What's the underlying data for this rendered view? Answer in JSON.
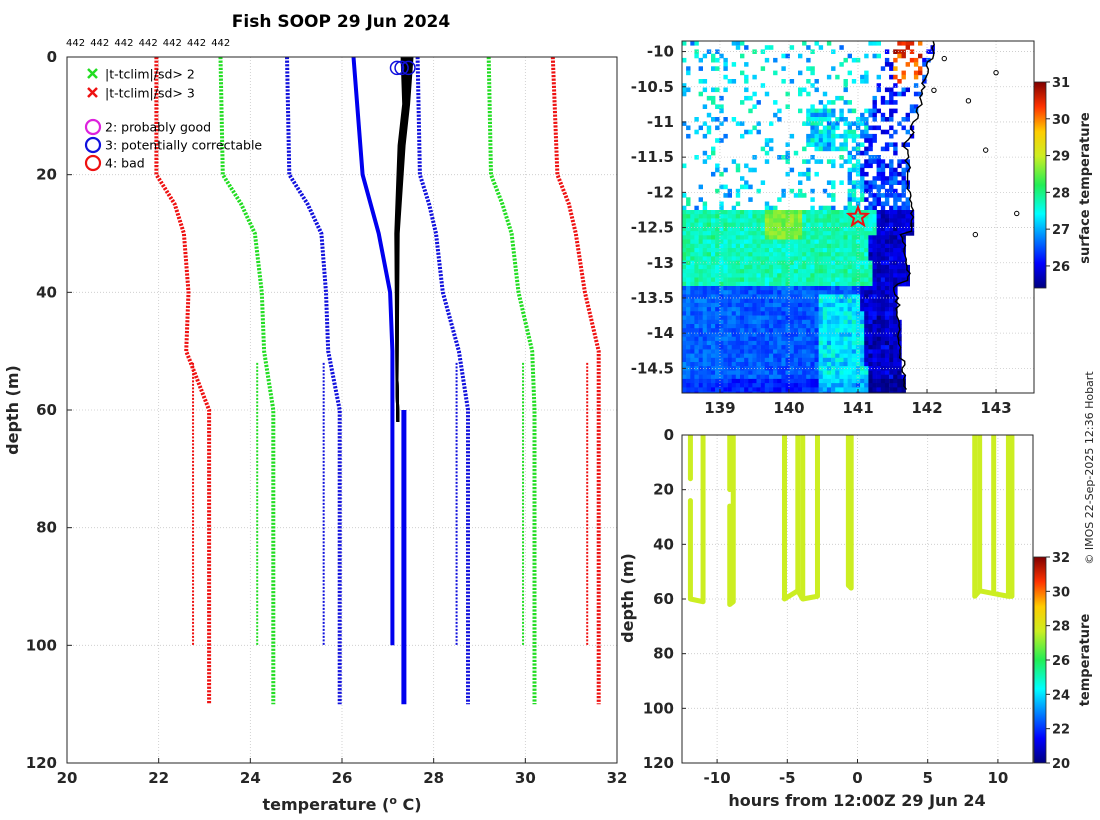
{
  "figure_title": "Fish SOOP 29 Jun 2024",
  "copyright": "© IMOS 22-Sep-2025 12:36 Hobart",
  "chart_data": [
    {
      "type": "line",
      "name": "temperature-profile",
      "xlabel": "temperature (",
      "xlabel_sup": "o",
      "xlabel_end": " C)",
      "ylabel": "depth (m)",
      "xlim": [
        20,
        32
      ],
      "ylim": [
        120,
        0
      ],
      "xticks": [
        20,
        22,
        24,
        26,
        28,
        30,
        32
      ],
      "yticks": [
        0,
        20,
        40,
        60,
        80,
        100,
        120
      ],
      "top_counts": [
        "442",
        "442",
        "442",
        "442",
        "442",
        "442",
        "442"
      ],
      "legend": [
        {
          "marker": "x",
          "color": "#22dd22",
          "label": "|t-tclim|/sd> 2"
        },
        {
          "marker": "x",
          "color": "#ee1111",
          "label": "|t-tclim|/sd> 3"
        },
        {
          "marker": "o",
          "color": "#dd22dd",
          "label": "2: probably good"
        },
        {
          "marker": "o",
          "color": "#1111dd",
          "label": "3: potentially correctable"
        },
        {
          "marker": "o",
          "color": "#ee1111",
          "label": "4: bad"
        }
      ],
      "depths": [
        0,
        20,
        25,
        30,
        40,
        50,
        60,
        100,
        110
      ],
      "climatology": [
        {
          "name": "-3sd",
          "color": "#ee1111",
          "offset": 0,
          "values": [
            21.95,
            21.95,
            22.35,
            22.55,
            22.65,
            22.6,
            23.1,
            23.1,
            23.1
          ]
        },
        {
          "name": "-2sd",
          "color": "#22dd22",
          "offset": 0,
          "values": [
            23.35,
            23.4,
            23.8,
            24.1,
            24.25,
            24.3,
            24.5,
            24.5,
            24.5
          ]
        },
        {
          "name": "-1sd",
          "color": "#1111dd",
          "offset": 0,
          "values": [
            24.8,
            24.85,
            25.25,
            25.55,
            25.65,
            25.7,
            25.95,
            25.95,
            25.95
          ]
        },
        {
          "name": "+1sd",
          "color": "#1111dd",
          "offset": 0,
          "values": [
            27.65,
            27.7,
            27.9,
            28.05,
            28.2,
            28.55,
            28.75,
            28.75,
            28.75
          ]
        },
        {
          "name": "+2sd",
          "color": "#22dd22",
          "offset": 0,
          "values": [
            29.2,
            29.25,
            29.5,
            29.7,
            29.85,
            30.15,
            30.2,
            30.2,
            30.2
          ]
        },
        {
          "name": "+3sd",
          "color": "#ee1111",
          "offset": 0,
          "values": [
            30.6,
            30.7,
            30.95,
            31.1,
            31.3,
            31.6,
            31.6,
            31.6,
            31.6
          ]
        }
      ],
      "climatology_short": [
        {
          "color": "#ee1111",
          "x": 22.75,
          "depth_range": [
            52,
            100
          ]
        },
        {
          "color": "#22dd22",
          "x": 24.15,
          "depth_range": [
            52,
            100
          ]
        },
        {
          "color": "#1111dd",
          "x": 25.6,
          "depth_range": [
            52,
            100
          ]
        },
        {
          "color": "#1111dd",
          "x": 28.5,
          "depth_range": [
            52,
            100
          ]
        },
        {
          "color": "#22dd22",
          "x": 29.95,
          "depth_range": [
            52,
            100
          ]
        },
        {
          "color": "#ee1111",
          "x": 31.35,
          "depth_range": [
            52,
            100
          ]
        }
      ],
      "mean_profile": {
        "color": "#0000ee",
        "depths": [
          0,
          20,
          30,
          40,
          50,
          60,
          100
        ],
        "values": [
          26.25,
          26.45,
          26.8,
          27.05,
          27.1,
          27.1,
          27.1
        ]
      },
      "mean_profile_deep": {
        "color": "#0000ee",
        "depths": [
          60,
          110
        ],
        "values": [
          27.35,
          27.35
        ]
      },
      "observed_profiles": {
        "color": "#000000",
        "count": 7,
        "max_depth": 62,
        "surface_temp": 27.3,
        "deep_temp": 27.2
      },
      "flagged_points": {
        "color": "#1111dd",
        "marker": "o",
        "depth": 1,
        "values": [
          27.2,
          27.3,
          27.45
        ]
      }
    },
    {
      "type": "heatmap",
      "name": "surface-temperature-map",
      "xlim": [
        138.45,
        143.55
      ],
      "ylim": [
        -14.85,
        -9.85
      ],
      "xticks": [
        139,
        140,
        141,
        142,
        143
      ],
      "yticks": [
        -10,
        -10.5,
        -11,
        -11.5,
        -12,
        -12.5,
        -13,
        -13.5,
        -14,
        -14.5
      ],
      "xticklabels": [
        "139",
        "140",
        "141",
        "142",
        "143"
      ],
      "yticklabels": [
        "-10",
        "-10.5",
        "-11",
        "-11.5",
        "-12",
        "-12.5",
        "-13",
        "-13.5",
        "-14",
        "-14.5"
      ],
      "colorbar": {
        "label": "surface temperature",
        "range": [
          25.4,
          31
        ],
        "ticks": [
          26,
          27,
          28,
          29,
          30,
          31
        ]
      },
      "marker": {
        "type": "star",
        "color": "#ee1111",
        "lon": 141.0,
        "lat": -12.35
      }
    },
    {
      "type": "scatter",
      "name": "depth-time-section",
      "xlabel": "hours from 12:00Z 29 Jun 24",
      "ylabel": "depth (m)",
      "xlim": [
        -12.5,
        12.5
      ],
      "ylim": [
        120,
        0
      ],
      "xticks": [
        -10,
        -5,
        0,
        5,
        10
      ],
      "yticks": [
        0,
        20,
        40,
        60,
        80,
        100,
        120
      ],
      "colorbar": {
        "label": "temperature",
        "range": [
          20,
          32
        ],
        "ticks": [
          20,
          22,
          24,
          26,
          28,
          30,
          32
        ]
      },
      "point_color": "#ccee22",
      "casts": [
        {
          "hour": -11.9,
          "max_depth": 60
        },
        {
          "hour": -11.0,
          "max_depth": 61
        },
        {
          "hour": -9.1,
          "max_depth": 62
        },
        {
          "hour": -8.85,
          "max_depth": 61
        },
        {
          "hour": -5.2,
          "max_depth": 60
        },
        {
          "hour": -4.25,
          "max_depth": 57
        },
        {
          "hour": -3.9,
          "max_depth": 60
        },
        {
          "hour": -2.85,
          "max_depth": 59
        },
        {
          "hour": -0.65,
          "max_depth": 55
        },
        {
          "hour": -0.45,
          "max_depth": 56
        },
        {
          "hour": 8.35,
          "max_depth": 59
        },
        {
          "hour": 8.7,
          "max_depth": 57
        },
        {
          "hour": 9.7,
          "max_depth": 58
        },
        {
          "hour": 10.75,
          "max_depth": 59
        },
        {
          "hour": 11.0,
          "max_depth": 59
        }
      ],
      "gaps": [
        {
          "hour": -11.9,
          "from": 16,
          "to": 24
        },
        {
          "hour": -9.1,
          "from": 20,
          "to": 26
        }
      ]
    }
  ]
}
